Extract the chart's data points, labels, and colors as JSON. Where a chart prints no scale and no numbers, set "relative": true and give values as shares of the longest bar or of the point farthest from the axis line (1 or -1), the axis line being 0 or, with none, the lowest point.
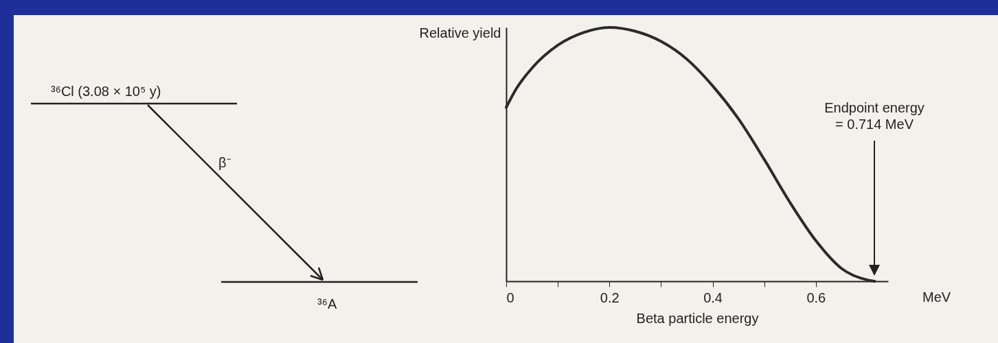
{
  "chart_data": {
    "type": "line",
    "xlabel": "Beta particle energy",
    "ylabel": "Relative yield",
    "relative": true,
    "x": [
      0,
      0.02,
      0.05,
      0.1,
      0.15,
      0.2,
      0.25,
      0.3,
      0.35,
      0.4,
      0.45,
      0.5,
      0.55,
      0.6,
      0.65,
      0.7,
      0.714
    ],
    "series": [
      {
        "color": "#2b2b2b",
        "values": [
          0.685,
          0.76,
          0.84,
          0.93,
          0.98,
          1.0,
          0.985,
          0.945,
          0.875,
          0.77,
          0.64,
          0.48,
          0.31,
          0.16,
          0.05,
          0.005,
          0
        ]
      }
    ],
    "xlim": [
      0,
      0.74
    ],
    "xticks": [
      0,
      {
        "value": 0.1,
        "label": null
      },
      0.2,
      {
        "value": 0.3,
        "label": null
      },
      0.4,
      {
        "value": 0.5,
        "label": null
      },
      0.6
    ],
    "annotations": [
      "Endpoint energy\n= 0.714 MeV",
      "MeV",
      "³⁶Cl (3.08 × 10⁵ y)",
      "β⁻",
      "³⁶A"
    ]
  }
}
